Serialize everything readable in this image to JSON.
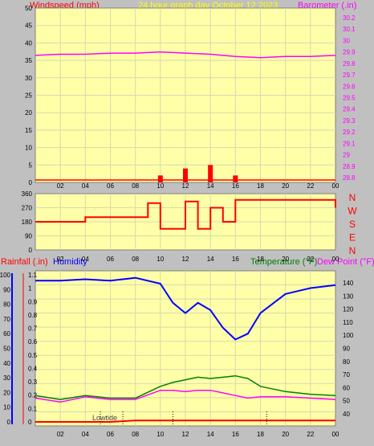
{
  "header": {
    "left_title": "Windspeed (mph)",
    "center_title": "24 hour graph day   October 12 2023",
    "right_title": "Barometer (.in)"
  },
  "colors": {
    "plot_bg": "#ffffa8",
    "frame_bg": "#c0c0c0",
    "wind": "#ff0000",
    "gust": "#0000ff",
    "wind_dir": "#ff0000",
    "barometer": "#ff00ff",
    "humidity": "#0000ff",
    "temperature": "#008000",
    "dewpoint": "#ff00ff",
    "rain": "#ff0000",
    "title_yellow": "#ffff00"
  },
  "x_ticks": [
    "02",
    "04",
    "06",
    "08",
    "10",
    "12",
    "14",
    "16",
    "18",
    "20",
    "22",
    "00"
  ],
  "panel1": {
    "wind_ticks": [
      "50",
      "45",
      "40",
      "35",
      "30",
      "25",
      "20",
      "15",
      "10",
      "5",
      "0"
    ],
    "baro_ticks": [
      "30.2",
      "30.1",
      "30",
      "29.9",
      "29.8",
      "29.7",
      "29.6",
      "29.5",
      "29.4",
      "29.3",
      "29.2",
      "29.1",
      "29",
      "28.9",
      "28.8"
    ]
  },
  "panel2": {
    "dir_ticks": [
      "360",
      "270",
      "180",
      "90",
      "0"
    ],
    "compass": [
      "N",
      "W",
      "S",
      "E",
      "N"
    ]
  },
  "panel3": {
    "rain_label": "Rainfall (.in)",
    "humidity_label": "Humidity",
    "temp_label": "Temperature (°F)",
    "dew_label": "Dew Point (°F)",
    "rain_ticks": [
      "1.1",
      "1",
      "0.9",
      "0.8",
      "0.7",
      "0.6",
      "0.5",
      "0.4",
      "0.3",
      "0.2",
      "0.1",
      "0"
    ],
    "hum_ticks": [
      "100",
      "90",
      "80",
      "70",
      "60",
      "50",
      "40",
      "30",
      "20",
      "10",
      "0"
    ],
    "temp_ticks": [
      "140",
      "130",
      "120",
      "110",
      "100",
      "90",
      "80",
      "70",
      "60",
      "50",
      "40"
    ],
    "tide_label": "Lowtide"
  },
  "chart_data": [
    {
      "type": "line",
      "title": "24 hour graph day   October 12 2023",
      "xlabel": "",
      "ylabel": "Windspeed (mph)",
      "x": [
        0,
        2,
        4,
        6,
        8,
        10,
        12,
        14,
        16,
        18,
        20,
        22,
        24
      ],
      "ylim": [
        0,
        50
      ],
      "y2lim": [
        28.8,
        30.2
      ],
      "series": [
        {
          "name": "Windspeed (mph)",
          "axis": "left",
          "values": [
            0,
            0,
            0,
            0,
            0,
            2,
            4,
            5,
            2,
            0,
            0,
            0,
            0
          ]
        },
        {
          "name": "Barometer (.in)",
          "axis": "right",
          "values": [
            29.87,
            29.88,
            29.88,
            29.89,
            29.89,
            29.9,
            29.89,
            29.88,
            29.86,
            29.85,
            29.86,
            29.86,
            29.87
          ]
        }
      ]
    },
    {
      "type": "line",
      "xlabel": "",
      "ylabel": "",
      "x": [
        0,
        2,
        3,
        4,
        6,
        8.5,
        9,
        10,
        12,
        13,
        14,
        15,
        16,
        18,
        20,
        22,
        24
      ],
      "ylim": [
        0,
        360
      ],
      "series": [
        {
          "name": "Wind direction",
          "values": [
            180,
            180,
            180,
            210,
            210,
            210,
            300,
            135,
            310,
            135,
            270,
            180,
            320,
            320,
            320,
            320,
            270
          ]
        }
      ]
    },
    {
      "type": "line",
      "xlabel": "",
      "ylabel": "Rainfall (.in)",
      "x": [
        0,
        2,
        4,
        6,
        8,
        10,
        11,
        12,
        13,
        14,
        15,
        16,
        17,
        18,
        20,
        22,
        24
      ],
      "rain_ylim": [
        0,
        1.1
      ],
      "humidity_ylim": [
        0,
        100
      ],
      "temp_ylim": [
        40,
        140
      ],
      "series": [
        {
          "name": "Humidity",
          "axis": "humidity",
          "values": [
            96,
            96,
            97,
            96,
            98,
            94,
            81,
            74,
            81,
            76,
            64,
            56,
            60,
            74,
            87,
            91,
            93
          ]
        },
        {
          "name": "Temperature (°F)",
          "axis": "temperature",
          "values": [
            54,
            51,
            54,
            52,
            52,
            61,
            64,
            66,
            68,
            67,
            68,
            69,
            67,
            61,
            57,
            55,
            54
          ]
        },
        {
          "name": "Dew Point (°F)",
          "axis": "temperature",
          "values": [
            52,
            49,
            53,
            51,
            51,
            58,
            58,
            57,
            58,
            58,
            56,
            54,
            52,
            53,
            53,
            52,
            51
          ]
        },
        {
          "name": "Rainfall (.in)",
          "axis": "rain",
          "values": [
            0,
            0,
            0,
            0,
            0.01,
            0.01,
            0.01,
            0.01,
            0.01,
            0.01,
            0.01,
            0.01,
            0.01,
            0.01,
            0.01,
            0.01,
            0.01
          ]
        }
      ]
    }
  ]
}
